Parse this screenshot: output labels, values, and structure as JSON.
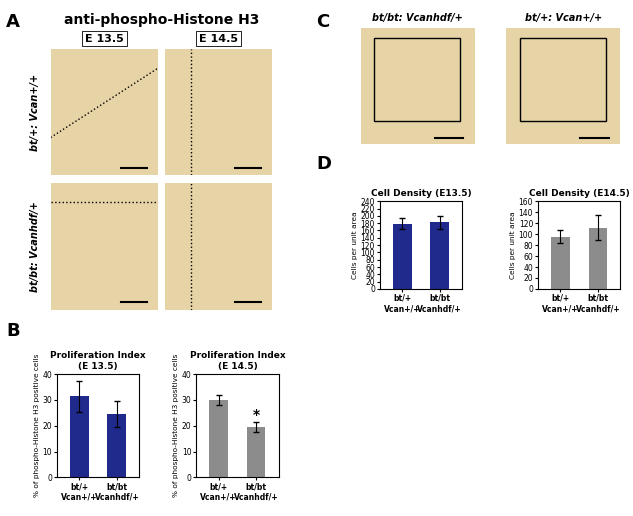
{
  "panels": [
    {
      "label": "A",
      "title": "anti-phospho-Histone H3",
      "columns": [
        "E 13.5",
        "E 14.5"
      ],
      "rows": [
        "bt/+: Vcan+/+",
        "bt/bt: Vcanhdf/+"
      ]
    },
    {
      "label": "C",
      "columns": [
        "bt/bt: Vcanhdf/+",
        "bt/+: Vcan+/+"
      ]
    }
  ],
  "chart_data": [
    {
      "panel": "B",
      "type": "bar",
      "title": "Proliferation Index\n(E 13.5)",
      "y_label": "% of phospho-Histone H3 positive cells",
      "categories": [
        "bt/+\nVcan+/+",
        "bt/bt\nVcanhdf/+"
      ],
      "values": [
        31.5,
        24.5
      ],
      "errors": [
        6,
        5
      ],
      "color": "#1f2a8c",
      "ylim": [
        0,
        40
      ],
      "yticks": [
        0,
        10,
        20,
        30,
        40
      ],
      "grid": false
    },
    {
      "type": "bar",
      "title": "Proliferation Index\n(E 14.5)",
      "y_label": "% of phospho-Histone H3 positive cells",
      "categories": [
        "bt/+\nVcan+/+",
        "bt/bt\nVcanhdf/+"
      ],
      "values": [
        30,
        19.5
      ],
      "errors": [
        2,
        2
      ],
      "color": "#8c8c8c",
      "ylim": [
        0,
        40
      ],
      "yticks": [
        0,
        10,
        20,
        30,
        40
      ],
      "grid": false,
      "annotations": [
        {
          "text": "*",
          "category": "bt/bt\nVcanhdf/+"
        }
      ]
    },
    {
      "panel": "D",
      "type": "bar",
      "title": "Cell Density (E13.5)",
      "y_label": "Cells per unit area",
      "categories": [
        "bt/+\nVcan+/+",
        "bt/bt\nVcanhdf/+"
      ],
      "values": [
        178,
        182
      ],
      "errors": [
        15,
        17
      ],
      "color": "#1f2a8c",
      "ylim": [
        0,
        240
      ],
      "yticks": [
        0,
        20,
        40,
        60,
        80,
        100,
        120,
        140,
        160,
        180,
        200,
        220,
        240
      ],
      "grid": false
    },
    {
      "type": "bar",
      "title": "Cell Density (E14.5)",
      "y_label": "Cells per unit area",
      "categories": [
        "bt/+\nVcan+/+",
        "bt/bt\nVcanhdf/+"
      ],
      "values": [
        95,
        112
      ],
      "errors": [
        12,
        22
      ],
      "color": "#8c8c8c",
      "ylim": [
        0,
        160
      ],
      "yticks": [
        0,
        20,
        40,
        60,
        80,
        100,
        120,
        140,
        160
      ],
      "grid": false
    }
  ]
}
